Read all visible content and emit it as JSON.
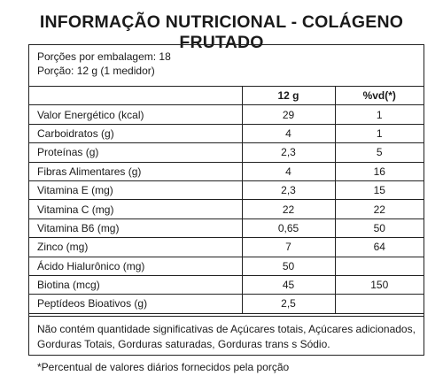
{
  "title": "INFORMAÇÃO NUTRICIONAL - COLÁGENO FRUTADO",
  "serving": {
    "per_package": "Porções por embalagem: 18",
    "portion": "Porção: 12 g (1 medidor)"
  },
  "table": {
    "headers": [
      "",
      "12 g",
      "%vd(*)"
    ],
    "rows": [
      {
        "nutrient": "Valor Energético (kcal)",
        "amount": "29",
        "vd": "1"
      },
      {
        "nutrient": "Carboidratos (g)",
        "amount": "4",
        "vd": "1"
      },
      {
        "nutrient": "Proteínas (g)",
        "amount": "2,3",
        "vd": "5"
      },
      {
        "nutrient": "Fibras Alimentares (g)",
        "amount": "4",
        "vd": "16"
      },
      {
        "nutrient": "Vitamina E (mg)",
        "amount": "2,3",
        "vd": "15"
      },
      {
        "nutrient": "Vitamina C (mg)",
        "amount": "22",
        "vd": "22"
      },
      {
        "nutrient": "Vitamina B6 (mg)",
        "amount": "0,65",
        "vd": "50"
      },
      {
        "nutrient": "Zinco (mg)",
        "amount": "7",
        "vd": "64"
      },
      {
        "nutrient": "Ácido Hialurônico (mg)",
        "amount": "50",
        "vd": ""
      },
      {
        "nutrient": "Biotina (mcg)",
        "amount": "45",
        "vd": "150"
      },
      {
        "nutrient": "Peptídeos Bioativos (g)",
        "amount": "2,5",
        "vd": ""
      }
    ]
  },
  "footnote": {
    "line1": "Não contém quantidade significativas de Açúcares totais, Açúcares adicionados,",
    "line2": "Gorduras Totais, Gorduras saturadas, Gorduras trans s Sódio."
  },
  "daily_value_note": "*Percentual de valores diários fornecidos pela porção"
}
